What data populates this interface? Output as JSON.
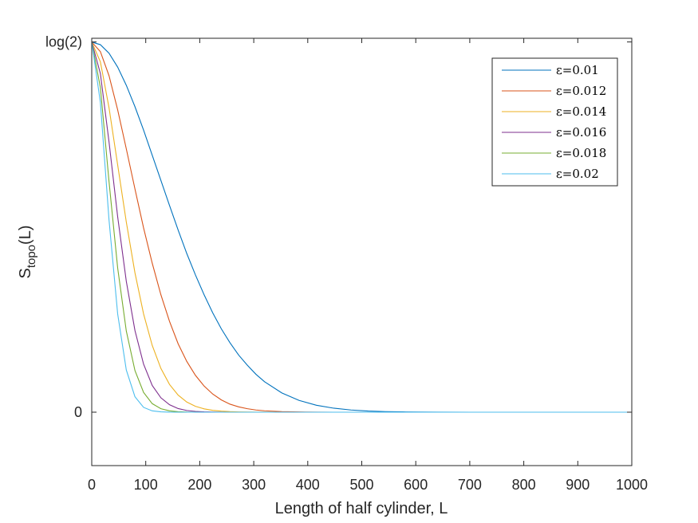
{
  "chart_data": {
    "type": "line",
    "title": "",
    "xlabel": "Length of half cylinder, L",
    "ylabel_base": "S",
    "ylabel_sub": "topo",
    "ylabel_tail": "(L)",
    "xlim": [
      0,
      1000
    ],
    "ylim": [
      -0.1,
      0.7
    ],
    "x_ticks": [
      0,
      100,
      200,
      300,
      400,
      500,
      600,
      700,
      800,
      900,
      1000
    ],
    "x_tick_labels": [
      "0",
      "100",
      "200",
      "300",
      "400",
      "500",
      "600",
      "700",
      "800",
      "900",
      "1000"
    ],
    "y_ticks": [
      0,
      0.6931
    ],
    "y_tick_labels": [
      "0",
      "log(2)"
    ],
    "grid": false,
    "legend_position": "top-right",
    "x": [
      0,
      16,
      32,
      48,
      64,
      80,
      96,
      112,
      128,
      144,
      160,
      176,
      192,
      208,
      224,
      240,
      256,
      272,
      288,
      304,
      320,
      352,
      384,
      416,
      448,
      480,
      512,
      544,
      576,
      608,
      640,
      704,
      768,
      832,
      896,
      960,
      1000
    ],
    "series": [
      {
        "name": "ε=0.01",
        "color": "#0072BD",
        "values": [
          0.693,
          0.688,
          0.672,
          0.646,
          0.612,
          0.572,
          0.528,
          0.481,
          0.434,
          0.387,
          0.341,
          0.297,
          0.257,
          0.22,
          0.186,
          0.156,
          0.13,
          0.107,
          0.088,
          0.071,
          0.057,
          0.036,
          0.022,
          0.013,
          0.0075,
          0.0041,
          0.0022,
          0.0011,
          0.0006,
          0.0003,
          0.0001,
          0.0,
          0.0,
          0.0,
          0.0,
          0.0,
          0.0
        ]
      },
      {
        "name": "ε=0.012",
        "color": "#D95319",
        "values": [
          0.693,
          0.675,
          0.63,
          0.566,
          0.493,
          0.418,
          0.345,
          0.279,
          0.22,
          0.17,
          0.128,
          0.095,
          0.069,
          0.049,
          0.034,
          0.023,
          0.015,
          0.01,
          0.0065,
          0.0041,
          0.0026,
          0.001,
          0.0004,
          0.0001,
          0.0,
          0.0,
          0.0,
          0.0,
          0.0,
          0.0,
          0.0,
          0.0,
          0.0,
          0.0,
          0.0,
          0.0,
          0.0
        ]
      },
      {
        "name": "ε=0.014",
        "color": "#EDB120",
        "values": [
          0.693,
          0.656,
          0.57,
          0.463,
          0.356,
          0.261,
          0.184,
          0.125,
          0.082,
          0.052,
          0.032,
          0.019,
          0.011,
          0.0063,
          0.0035,
          0.0019,
          0.001,
          0.0005,
          0.0003,
          0.0001,
          0.0001,
          0.0,
          0.0,
          0.0,
          0.0,
          0.0,
          0.0,
          0.0,
          0.0,
          0.0,
          0.0,
          0.0,
          0.0,
          0.0,
          0.0,
          0.0,
          0.0
        ]
      },
      {
        "name": "ε=0.016",
        "color": "#7E2F8E",
        "values": [
          0.693,
          0.634,
          0.506,
          0.366,
          0.245,
          0.153,
          0.09,
          0.05,
          0.027,
          0.014,
          0.0068,
          0.0032,
          0.0015,
          0.0007,
          0.0003,
          0.0001,
          0.0,
          0.0,
          0.0,
          0.0,
          0.0,
          0.0,
          0.0,
          0.0,
          0.0,
          0.0,
          0.0,
          0.0,
          0.0,
          0.0,
          0.0,
          0.0,
          0.0,
          0.0,
          0.0,
          0.0,
          0.0
        ]
      },
      {
        "name": "ε=0.018",
        "color": "#77AC30",
        "values": [
          0.693,
          0.608,
          0.432,
          0.27,
          0.152,
          0.078,
          0.037,
          0.016,
          0.0065,
          0.0025,
          0.0009,
          0.0003,
          0.0001,
          0.0,
          0.0,
          0.0,
          0.0,
          0.0,
          0.0,
          0.0,
          0.0,
          0.0,
          0.0,
          0.0,
          0.0,
          0.0,
          0.0,
          0.0,
          0.0,
          0.0,
          0.0,
          0.0,
          0.0,
          0.0,
          0.0,
          0.0,
          0.0
        ]
      },
      {
        "name": "ε=0.02",
        "color": "#4DBEEE",
        "values": [
          0.693,
          0.58,
          0.36,
          0.184,
          0.079,
          0.029,
          0.009,
          0.0025,
          0.0006,
          0.0001,
          0.0,
          0.0,
          0.0,
          0.0,
          0.0,
          0.0,
          0.0,
          0.0,
          0.0,
          0.0,
          0.0,
          0.0,
          0.0,
          0.0,
          0.0,
          0.0,
          0.0,
          0.0,
          0.0,
          0.0,
          0.0,
          0.0,
          0.0,
          0.0,
          0.0,
          0.0,
          0.0
        ]
      }
    ]
  }
}
